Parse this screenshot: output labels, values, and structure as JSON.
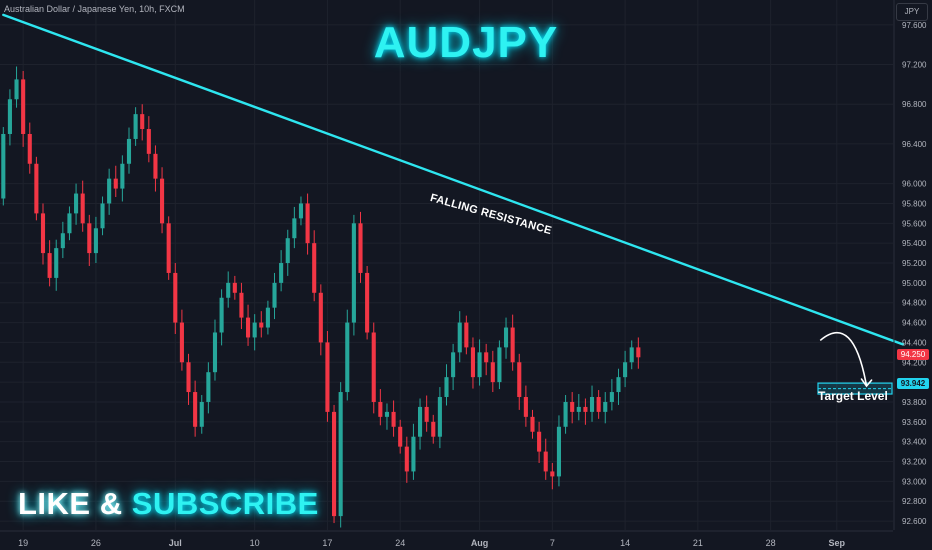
{
  "header": {
    "symbol_line": "Australian Dollar / Japanese Yen, 10h, FXCM",
    "currency_button": "JPY"
  },
  "overlay": {
    "title": "AUDJPY",
    "cta_like": "LIKE",
    "cta_amp": "&",
    "cta_subscribe": "SUBSCRIBE",
    "resistance_label": "FALLING RESISTANCE",
    "target_label": "Target Level",
    "current_price_tag": "94.250",
    "target_price_tag": "93.942"
  },
  "colors": {
    "background": "#131722",
    "bull": "#26a69a",
    "bear": "#f23645",
    "accent": "#2ef2f2"
  },
  "chart_data": {
    "type": "candlestick",
    "title": "AUDJPY",
    "y_ticks": [
      "97.600",
      "97.200",
      "96.800",
      "96.400",
      "96.000",
      "95.800",
      "95.600",
      "95.400",
      "95.200",
      "95.000",
      "94.800",
      "94.600",
      "94.400",
      "94.200",
      "94.000",
      "93.800",
      "93.600",
      "93.400",
      "93.200",
      "93.000",
      "92.800",
      "92.600"
    ],
    "x_ticks": [
      {
        "label": "19",
        "i": 3
      },
      {
        "label": "26",
        "i": 14
      },
      {
        "label": "Jul",
        "i": 26
      },
      {
        "label": "10",
        "i": 38
      },
      {
        "label": "17",
        "i": 49
      },
      {
        "label": "24",
        "i": 60
      },
      {
        "label": "Aug",
        "i": 72
      },
      {
        "label": "7",
        "i": 83
      },
      {
        "label": "14",
        "i": 94
      },
      {
        "label": "21",
        "i": 105
      },
      {
        "label": "28",
        "i": 116
      },
      {
        "label": "Sep",
        "i": 126
      }
    ],
    "ylim": [
      92.51,
      97.85
    ],
    "slots": 135,
    "candles": [
      [
        95.85,
        96.5
      ],
      [
        96.5,
        96.85
      ],
      [
        96.85,
        97.05
      ],
      [
        97.05,
        96.5
      ],
      [
        96.5,
        96.2
      ],
      [
        96.2,
        95.7
      ],
      [
        95.7,
        95.3
      ],
      [
        95.3,
        95.05
      ],
      [
        95.05,
        95.35
      ],
      [
        95.35,
        95.5
      ],
      [
        95.5,
        95.7
      ],
      [
        95.7,
        95.9
      ],
      [
        95.9,
        95.6
      ],
      [
        95.6,
        95.3
      ],
      [
        95.3,
        95.55
      ],
      [
        95.55,
        95.8
      ],
      [
        95.8,
        96.05
      ],
      [
        96.05,
        95.95
      ],
      [
        95.95,
        96.2
      ],
      [
        96.2,
        96.45
      ],
      [
        96.45,
        96.7
      ],
      [
        96.7,
        96.55
      ],
      [
        96.55,
        96.3
      ],
      [
        96.3,
        96.05
      ],
      [
        96.05,
        95.6
      ],
      [
        95.6,
        95.1
      ],
      [
        95.1,
        94.6
      ],
      [
        94.6,
        94.2
      ],
      [
        94.2,
        93.9
      ],
      [
        93.9,
        93.55
      ],
      [
        93.55,
        93.8
      ],
      [
        93.8,
        94.1
      ],
      [
        94.1,
        94.5
      ],
      [
        94.5,
        94.85
      ],
      [
        94.85,
        95.0
      ],
      [
        95.0,
        94.9
      ],
      [
        94.9,
        94.65
      ],
      [
        94.65,
        94.45
      ],
      [
        94.45,
        94.6
      ],
      [
        94.6,
        94.55
      ],
      [
        94.55,
        94.75
      ],
      [
        94.75,
        95.0
      ],
      [
        95.0,
        95.2
      ],
      [
        95.2,
        95.45
      ],
      [
        95.45,
        95.65
      ],
      [
        95.65,
        95.8
      ],
      [
        95.8,
        95.4
      ],
      [
        95.4,
        94.9
      ],
      [
        94.9,
        94.4
      ],
      [
        94.4,
        93.7
      ],
      [
        93.7,
        92.65
      ],
      [
        92.65,
        93.9
      ],
      [
        93.9,
        94.6
      ],
      [
        94.6,
        95.6
      ],
      [
        95.6,
        95.1
      ],
      [
        95.1,
        94.5
      ],
      [
        94.5,
        93.8
      ],
      [
        93.8,
        93.65
      ],
      [
        93.65,
        93.7
      ],
      [
        93.7,
        93.55
      ],
      [
        93.55,
        93.35
      ],
      [
        93.35,
        93.1
      ],
      [
        93.1,
        93.45
      ],
      [
        93.45,
        93.75
      ],
      [
        93.75,
        93.6
      ],
      [
        93.6,
        93.45
      ],
      [
        93.45,
        93.85
      ],
      [
        93.85,
        94.05
      ],
      [
        94.05,
        94.3
      ],
      [
        94.3,
        94.6
      ],
      [
        94.6,
        94.35
      ],
      [
        94.35,
        94.05
      ],
      [
        94.05,
        94.3
      ],
      [
        94.3,
        94.2
      ],
      [
        94.2,
        94.0
      ],
      [
        94.0,
        94.35
      ],
      [
        94.35,
        94.55
      ],
      [
        94.55,
        94.2
      ],
      [
        94.2,
        93.85
      ],
      [
        93.85,
        93.65
      ],
      [
        93.65,
        93.5
      ],
      [
        93.5,
        93.3
      ],
      [
        93.3,
        93.1
      ],
      [
        93.1,
        93.05
      ],
      [
        93.05,
        93.55
      ],
      [
        93.55,
        93.8
      ],
      [
        93.8,
        93.7
      ],
      [
        93.7,
        93.75
      ],
      [
        93.75,
        93.7
      ],
      [
        93.7,
        93.85
      ],
      [
        93.85,
        93.7
      ],
      [
        93.7,
        93.8
      ],
      [
        93.8,
        93.9
      ],
      [
        93.9,
        94.05
      ],
      [
        94.05,
        94.2
      ],
      [
        94.2,
        94.35
      ],
      [
        94.35,
        94.25
      ]
    ],
    "resistance_line": {
      "from": [
        0,
        97.7
      ],
      "to": [
        136,
        94.38
      ]
    },
    "target_zone": [
      93.88,
      93.99
    ],
    "projection": {
      "from": [
        123.5,
        94.42
      ],
      "to": [
        130.5,
        93.96
      ]
    }
  }
}
